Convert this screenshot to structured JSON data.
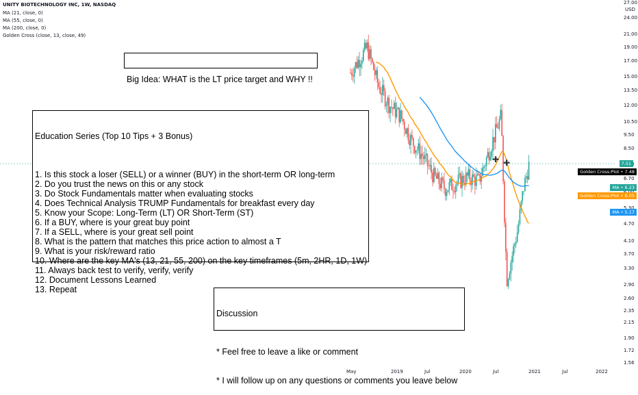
{
  "header": {
    "symbol_line": "UNITY BIOTECHNOLOGY INC, 1W, NASDAQ",
    "indicators": [
      "MA (21, close, 0)",
      "MA (55, close, 0)",
      "MA (200, close, 0)",
      "Golden Cross (close, 13, close, 49)"
    ]
  },
  "chart_data": {
    "type": "candlestick",
    "currency": "USD",
    "scale": "log",
    "price_axis_ticks": [
      "27.00",
      "24.00",
      "21.00",
      "19.00",
      "17.00",
      "15.00",
      "13.50",
      "12.00",
      "10.50",
      "9.50",
      "8.50",
      "7.50",
      "6.70",
      "6.00",
      "5.30",
      "4.70",
      "4.10",
      "3.70",
      "3.30",
      "2.90",
      "2.60",
      "2.35",
      "2.15",
      "1.90",
      "1.72",
      "1.56"
    ],
    "time_axis_ticks": [
      "May",
      "2019",
      "Jul",
      "2020",
      "Jul",
      "2021",
      "Jul",
      "2022"
    ],
    "price_labels": [
      {
        "label": "7.51",
        "color": "#26a69a"
      },
      {
        "label": "Golden Cross:Plot",
        "value": "7.48",
        "color": "#000000"
      },
      {
        "label": "MA",
        "value": "6.23",
        "color": "#26a69a"
      },
      {
        "label": "Golden Cross:Plot",
        "value": "6.05",
        "color": "#ff9800"
      },
      {
        "label": "MA",
        "value": "5.17",
        "color": "#2196f3"
      }
    ],
    "series_colors": {
      "up": "#26a69a",
      "down": "#ef5350",
      "ma21": "#ff9800",
      "ma55": "#2196f3",
      "ma200": "#26a69a"
    },
    "weekly_close_approx": [
      {
        "date": "2018-05",
        "close": 15.5
      },
      {
        "date": "2018-08",
        "close": 19.0
      },
      {
        "date": "2018-10",
        "close": 14.0
      },
      {
        "date": "2018-12",
        "close": 12.0
      },
      {
        "date": "2019-02",
        "close": 11.0
      },
      {
        "date": "2019-04",
        "close": 9.0
      },
      {
        "date": "2019-06",
        "close": 8.0
      },
      {
        "date": "2019-08",
        "close": 6.8
      },
      {
        "date": "2019-10",
        "close": 6.2
      },
      {
        "date": "2019-12",
        "close": 6.5
      },
      {
        "date": "2020-02",
        "close": 6.8
      },
      {
        "date": "2020-04",
        "close": 6.6
      },
      {
        "date": "2020-06",
        "close": 8.5
      },
      {
        "date": "2020-08",
        "close": 11.0
      },
      {
        "date": "2020-09",
        "close": 3.0
      },
      {
        "date": "2020-11",
        "close": 4.5
      },
      {
        "date": "2020-12",
        "close": 6.2
      },
      {
        "date": "2021-01",
        "close": 7.51
      }
    ]
  },
  "boxes": {
    "big_idea": "Big Idea: WHAT is the LT price target and WHY !!",
    "education_title": "Education Series (Top 10 Tips + 3 Bonus)",
    "education_items": [
      "1. Is this stock a loser (SELL) or a winner (BUY) in the short-term OR long-term",
      "2. Do you trust the news on this or any stock",
      "3. Do Stock Fundamentals matter when evaluating stocks",
      "4. Does Technical Analysis TRUMP Fundamentals for breakfast every day",
      "5. Know your Scope: Long-Term (LT) OR Short-Term (ST)",
      "6. If a BUY, where is your great buy point",
      "7. If a SELL, where is your great sell point",
      "8. What is the pattern that matches this price action to almost a T",
      "9. What is your risk/reward ratio",
      "10. Where are the key MA's (13, 21, 55, 200) on the key timeframes (5m, 2HR, 1D, 1W)",
      "11. Always back test to verify, verify, verify",
      "12. Document Lessons Learned",
      "13. Repeat"
    ],
    "discussion_title": "Discussion",
    "discussion_items": [
      "* Feel free to leave a like or comment",
      "* I will follow up on any questions or comments you leave below"
    ]
  }
}
